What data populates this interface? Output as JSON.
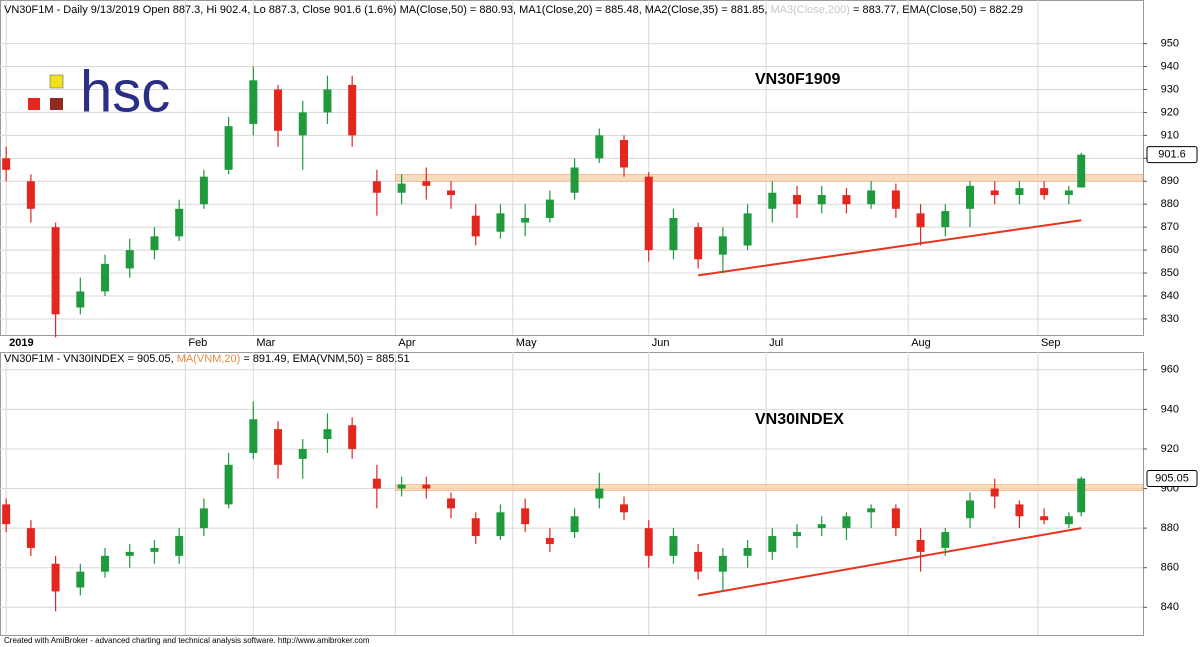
{
  "chart_data": [
    {
      "type": "candlestick",
      "header": [
        {
          "text": "VN30F1M - Daily 9/13/2019 Open 887.3, Hi 902.4, Lo 887.3, Close 901.6 (1.6%) MA(Close,50) = 880.93, MA1(Close,20) = 885.48, MA2(Close,35) = 881.85, ",
          "color": "#000000"
        },
        {
          "text": "MA3(Close,200)",
          "color": "#c8c8c8"
        },
        {
          "text": " = 883.77, EMA(Close,50) = 882.29",
          "color": "#000000"
        }
      ],
      "label": "VN30F1909",
      "xlim": [
        -1,
        184
      ],
      "xticks": [
        {
          "value": 0,
          "label": "2019"
        },
        {
          "value": 29,
          "label": "Feb"
        },
        {
          "value": 40,
          "label": "Mar"
        },
        {
          "value": 63,
          "label": "Apr"
        },
        {
          "value": 82,
          "label": "May"
        },
        {
          "value": 104,
          "label": "Jun"
        },
        {
          "value": 123,
          "label": "Jul"
        },
        {
          "value": 146,
          "label": "Aug"
        },
        {
          "value": 167,
          "label": "Sep"
        }
      ],
      "ylim": [
        823,
        969
      ],
      "yticks": [
        830,
        840,
        850,
        860,
        870,
        880,
        890,
        900,
        910,
        920,
        930,
        940,
        950
      ],
      "x": [
        0,
        4,
        8,
        12,
        16,
        20,
        24,
        28,
        32,
        36,
        40,
        44,
        48,
        52,
        56,
        60,
        64,
        68,
        72,
        76,
        80,
        84,
        88,
        92,
        96,
        100,
        104,
        108,
        112,
        116,
        120,
        124,
        128,
        132,
        136,
        140,
        144,
        148,
        152,
        156,
        160,
        164,
        168,
        172,
        174
      ],
      "open": [
        900,
        890,
        870,
        835,
        842,
        852,
        860,
        866,
        880,
        895,
        915,
        930,
        910,
        920,
        932,
        890,
        885,
        890,
        886,
        875,
        868,
        872,
        874,
        885,
        900,
        908,
        892,
        860,
        870,
        858,
        862,
        878,
        884,
        880,
        884,
        880,
        886,
        876,
        870,
        878,
        886,
        884,
        887,
        884,
        887.3
      ],
      "high": [
        905,
        893,
        872,
        848,
        858,
        865,
        870,
        882,
        895,
        918,
        940,
        932,
        925,
        936,
        936,
        895,
        893,
        896,
        890,
        880,
        880,
        880,
        886,
        900,
        913,
        910,
        894,
        878,
        872,
        870,
        880,
        890,
        888,
        888,
        887,
        890,
        889,
        880,
        880,
        890,
        890,
        890,
        890,
        888,
        902.4
      ],
      "low": [
        890,
        872,
        822,
        832,
        840,
        848,
        856,
        864,
        878,
        893,
        910,
        905,
        895,
        915,
        905,
        875,
        880,
        882,
        878,
        862,
        865,
        866,
        872,
        882,
        898,
        892,
        855,
        856,
        852,
        850,
        860,
        872,
        874,
        876,
        876,
        878,
        874,
        862,
        866,
        870,
        880,
        880,
        882,
        880,
        887.3
      ],
      "close": [
        895,
        878,
        832,
        842,
        854,
        860,
        866,
        878,
        892,
        914,
        934,
        912,
        920,
        930,
        910,
        885,
        889,
        888,
        884,
        866,
        876,
        874,
        882,
        896,
        910,
        896,
        860,
        874,
        856,
        866,
        876,
        885,
        880,
        884,
        880,
        886,
        878,
        870,
        877,
        888,
        884,
        887,
        884,
        886,
        901.6
      ],
      "up_color": "#1f9a3c",
      "down_color": "#e3261f",
      "band": {
        "xlim": [
          63,
          184
        ],
        "ylim": [
          890,
          893
        ],
        "color": "#f7cfa8"
      },
      "trendline": {
        "x": [
          112,
          174
        ],
        "y": [
          849,
          873
        ],
        "color": "#e8321e"
      },
      "grid": true
    },
    {
      "type": "candlestick",
      "header": [
        {
          "text": "VN30F1M - VN30INDEX = 905.05, ",
          "color": "#000000"
        },
        {
          "text": "MA(VNM,20)",
          "color": "#f08a3c"
        },
        {
          "text": " = 891.49, EMA(VNM,50) = 885.51",
          "color": "#000000"
        }
      ],
      "label": "VN30INDEX",
      "xlim": [
        -1,
        184
      ],
      "ylim": [
        826,
        969
      ],
      "yticks": [
        840,
        860,
        880,
        900,
        920,
        940,
        960
      ],
      "x": [
        0,
        4,
        8,
        12,
        16,
        20,
        24,
        28,
        32,
        36,
        40,
        44,
        48,
        52,
        56,
        60,
        64,
        68,
        72,
        76,
        80,
        84,
        88,
        92,
        96,
        100,
        104,
        108,
        112,
        116,
        120,
        124,
        128,
        132,
        136,
        140,
        144,
        148,
        152,
        156,
        160,
        164,
        168,
        172,
        174
      ],
      "open": [
        892,
        880,
        862,
        850,
        858,
        866,
        868,
        866,
        880,
        892,
        918,
        930,
        915,
        925,
        932,
        905,
        900,
        902,
        895,
        885,
        876,
        890,
        875,
        878,
        895,
        892,
        880,
        866,
        868,
        858,
        866,
        868,
        876,
        880,
        880,
        888,
        890,
        874,
        870,
        885,
        900,
        892,
        886,
        882,
        888
      ],
      "high": [
        895,
        884,
        866,
        862,
        870,
        872,
        874,
        880,
        895,
        918,
        944,
        934,
        925,
        938,
        936,
        912,
        906,
        906,
        898,
        888,
        892,
        895,
        880,
        890,
        908,
        896,
        884,
        880,
        872,
        870,
        874,
        880,
        882,
        886,
        888,
        892,
        892,
        880,
        880,
        898,
        905,
        894,
        890,
        888,
        906
      ],
      "low": [
        878,
        866,
        838,
        846,
        855,
        860,
        862,
        862,
        876,
        890,
        915,
        905,
        905,
        918,
        915,
        890,
        896,
        895,
        885,
        872,
        874,
        878,
        868,
        875,
        890,
        884,
        860,
        862,
        854,
        848,
        860,
        864,
        870,
        876,
        874,
        880,
        876,
        858,
        866,
        880,
        890,
        880,
        882,
        880,
        886
      ],
      "close": [
        882,
        870,
        848,
        858,
        866,
        868,
        870,
        876,
        890,
        912,
        935,
        912,
        920,
        930,
        920,
        900,
        902,
        900,
        890,
        876,
        888,
        882,
        872,
        886,
        900,
        888,
        866,
        876,
        858,
        866,
        870,
        876,
        878,
        882,
        886,
        890,
        880,
        868,
        878,
        894,
        896,
        886,
        884,
        886,
        905.05
      ],
      "up_color": "#1f9a3c",
      "down_color": "#e3261f",
      "band": {
        "xlim": [
          63,
          184
        ],
        "ylim": [
          899,
          902
        ],
        "color": "#f7cfa8"
      },
      "trendline": {
        "x": [
          112,
          174
        ],
        "y": [
          846,
          880
        ],
        "color": "#e8321e"
      },
      "grid": true
    }
  ],
  "logo": "hsc",
  "footer": "Created with AmiBroker - advanced charting and technical analysis software. http://www.amibroker.com"
}
